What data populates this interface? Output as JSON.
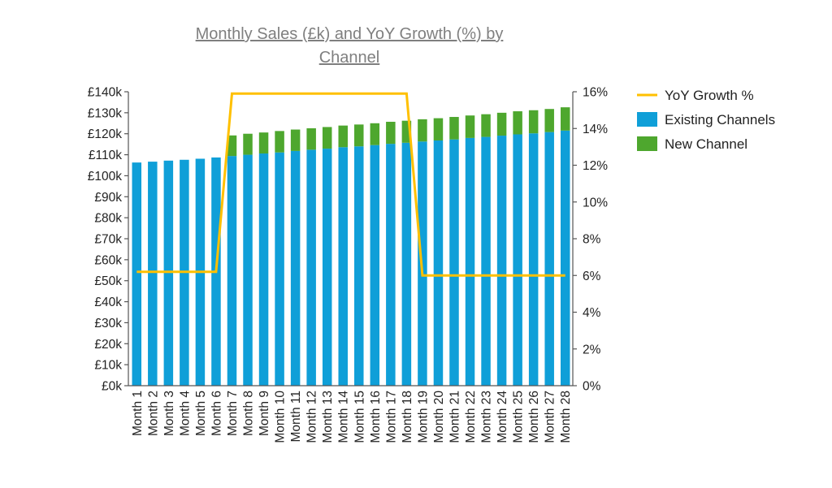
{
  "chart_data": {
    "type": "bar",
    "stacked": true,
    "title": "Monthly Sales (£k) and YoY Growth (%) by Channel",
    "title_lines": [
      "Monthly Sales (£k) and YoY Growth (%) by",
      "Channel"
    ],
    "xlabel": "",
    "ylabel": "",
    "y2label": "",
    "categories": [
      "Month 1",
      "Month 2",
      "Month 3",
      "Month 4",
      "Month 5",
      "Month 6",
      "Month 7",
      "Month 8",
      "Month 9",
      "Month 10",
      "Month 11",
      "Month 12",
      "Month 13",
      "Month 14",
      "Month 15",
      "Month 16",
      "Month 17",
      "Month 18",
      "Month 19",
      "Month 20",
      "Month 21",
      "Month 22",
      "Month 23",
      "Month 24",
      "Month 25",
      "Month 26",
      "Month 27",
      "Month 28"
    ],
    "series": [
      {
        "name": "Existing Channels",
        "type": "bar",
        "axis": "left",
        "color": "#0f9fd8",
        "values": [
          106.3,
          106.7,
          107.2,
          107.6,
          108.1,
          108.7,
          109.4,
          110.0,
          110.6,
          111.1,
          111.8,
          112.4,
          112.9,
          113.6,
          114.0,
          114.6,
          115.2,
          115.7,
          116.3,
          116.8,
          117.3,
          118.0,
          118.5,
          119.1,
          119.7,
          120.2,
          120.8,
          121.5
        ]
      },
      {
        "name": "New Channel",
        "type": "bar",
        "axis": "left",
        "color": "#4ea72e",
        "values": [
          0,
          0,
          0,
          0,
          0,
          0,
          9.8,
          10.0,
          10.0,
          10.2,
          10.2,
          10.2,
          10.3,
          10.3,
          10.4,
          10.4,
          10.5,
          10.5,
          10.6,
          10.6,
          10.7,
          10.7,
          10.8,
          10.9,
          11.0,
          11.0,
          11.0,
          11.1
        ]
      },
      {
        "name": "YoY Growth %",
        "type": "line",
        "axis": "right",
        "color": "#ffc000",
        "values": [
          6.2,
          6.2,
          6.2,
          6.2,
          6.2,
          6.2,
          15.9,
          15.9,
          15.9,
          15.9,
          15.9,
          15.9,
          15.9,
          15.9,
          15.9,
          15.9,
          15.9,
          15.9,
          6.0,
          6.0,
          6.0,
          6.0,
          6.0,
          6.0,
          6.0,
          6.0,
          6.0,
          6.0
        ]
      }
    ],
    "ylim": [
      0,
      140
    ],
    "yticks": [
      0,
      10,
      20,
      30,
      40,
      50,
      60,
      70,
      80,
      90,
      100,
      110,
      120,
      130,
      140
    ],
    "ytick_labels": [
      "£0k",
      "£10k",
      "£20k",
      "£30k",
      "£40k",
      "£50k",
      "£60k",
      "£70k",
      "£80k",
      "£90k",
      "£100k",
      "£110k",
      "£120k",
      "£130k",
      "£140k"
    ],
    "y2lim": [
      0,
      16
    ],
    "y2ticks": [
      0,
      2,
      4,
      6,
      8,
      10,
      12,
      14,
      16
    ],
    "y2tick_labels": [
      "0%",
      "2%",
      "4%",
      "6%",
      "8%",
      "10%",
      "12%",
      "14%",
      "16%"
    ],
    "grid": false,
    "legend": {
      "placement": "right-top",
      "entries": [
        {
          "label": "YoY Growth %",
          "kind": "line",
          "color": "#ffc000"
        },
        {
          "label": "Existing Channels",
          "kind": "box",
          "color": "#0f9fd8"
        },
        {
          "label": "New Channel",
          "kind": "box",
          "color": "#4ea72e"
        }
      ]
    }
  }
}
